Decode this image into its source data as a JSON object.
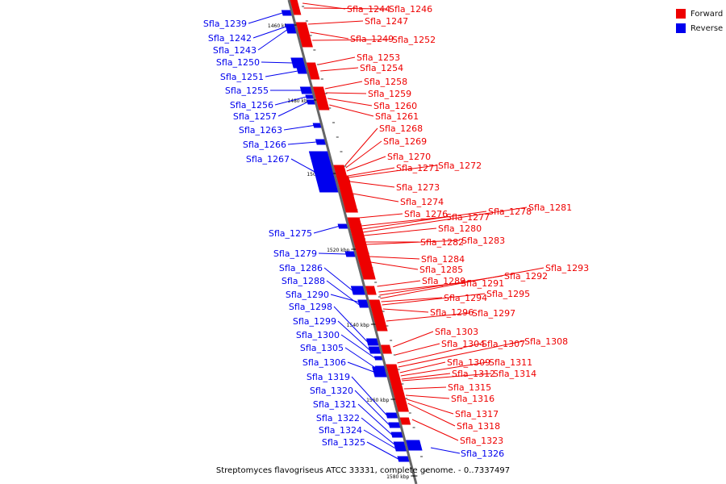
{
  "caption": "Streptomyces flavogriseus ATCC 33331, complete genome. - 0..7337497",
  "legend": {
    "forward": {
      "label": "Forward",
      "color": "#ee0000"
    },
    "reverse": {
      "label": "Reverse",
      "color": "#0000ee"
    }
  },
  "strand_colors": {
    "forward": "#ee0000",
    "reverse": "#0000ee",
    "backbone": "#808080"
  },
  "ticks": [
    "1460 kbp",
    "1480 kbp",
    "1500 kbp",
    "1520 kbp",
    "1540 kbp",
    "1560 kbp",
    "1580 kbp"
  ],
  "reverse_genes": [
    "Sfla_1239",
    "Sfla_1242",
    "Sfla_1243",
    "Sfla_1250",
    "Sfla_1251",
    "Sfla_1255",
    "Sfla_1256",
    "Sfla_1257",
    "Sfla_1263",
    "Sfla_1266",
    "Sfla_1267",
    "Sfla_1275",
    "Sfla_1279",
    "Sfla_1286",
    "Sfla_1288",
    "Sfla_1290",
    "Sfla_1298",
    "Sfla_1299",
    "Sfla_1300",
    "Sfla_1305",
    "Sfla_1306",
    "Sfla_1319",
    "Sfla_1320",
    "Sfla_1321",
    "Sfla_1322",
    "Sfla_1324",
    "Sfla_1325",
    "Sfla_1326"
  ],
  "forward_genes": [
    "Sfla_1244",
    "Sfla_1246",
    "Sfla_1247",
    "Sfla_1249",
    "Sfla_1252",
    "Sfla_1253",
    "Sfla_1254",
    "Sfla_1258",
    "Sfla_1259",
    "Sfla_1260",
    "Sfla_1261",
    "Sfla_1268",
    "Sfla_1269",
    "Sfla_1270",
    "Sfla_1271",
    "Sfla_1272",
    "Sfla_1273",
    "Sfla_1274",
    "Sfla_1276",
    "Sfla_1277",
    "Sfla_1278",
    "Sfla_1281",
    "Sfla_1280",
    "Sfla_1282",
    "Sfla_1283",
    "Sfla_1284",
    "Sfla_1285",
    "Sfla_1289",
    "Sfla_1291",
    "Sfla_1292",
    "Sfla_1293",
    "Sfla_1294",
    "Sfla_1295",
    "Sfla_1296",
    "Sfla_1297",
    "Sfla_1303",
    "Sfla_1304",
    "Sfla_1307",
    "Sfla_1308",
    "Sfla_1309",
    "Sfla_1311",
    "Sfla_1312",
    "Sfla_1314",
    "Sfla_1315",
    "Sfla_1316",
    "Sfla_1317",
    "Sfla_1318",
    "Sfla_1323"
  ]
}
